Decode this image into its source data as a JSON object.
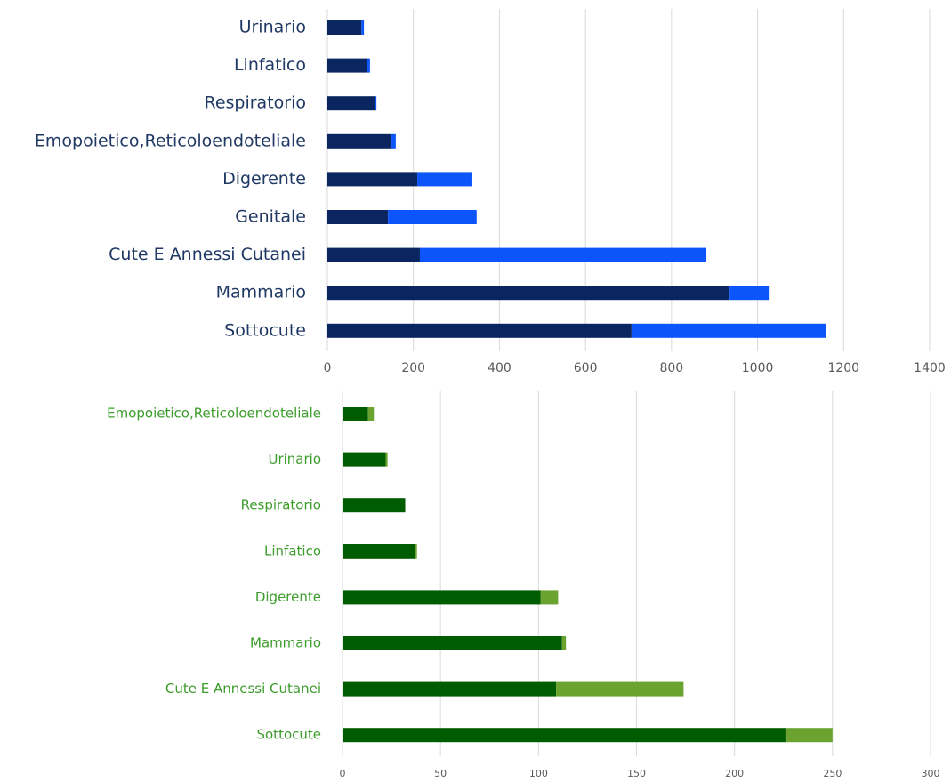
{
  "chart_data": [
    {
      "type": "stacked_barh",
      "categories": [
        "Urinario",
        "Linfatico",
        "Respiratorio",
        "Emopoietico,Reticoloendoteliale",
        "Digerente",
        "Genitale",
        "Cute E Annessi Cutanei",
        "Mammario",
        "Sottocute"
      ],
      "series": [
        {
          "color": "#0b2561",
          "values": [
            79,
            91,
            111,
            149,
            209,
            141,
            215,
            935,
            707
          ]
        },
        {
          "color": "#0b55fb",
          "values": [
            6,
            8,
            3,
            10,
            128,
            206,
            666,
            91,
            451
          ]
        }
      ],
      "label_color": "#1f3864",
      "xlim": [
        0,
        1400
      ],
      "xticks": [
        0,
        200,
        400,
        600,
        800,
        1000,
        1200,
        1400
      ],
      "grid": true
    },
    {
      "type": "stacked_barh",
      "categories": [
        "Emopoietico,Reticoloendoteliale",
        "Urinario",
        "Respiratorio",
        "Linfatico",
        "Digerente",
        "Mammario",
        "Cute E Annessi Cutanei",
        "Sottocute"
      ],
      "series": [
        {
          "color": "#005c00",
          "values": [
            13,
            22,
            32,
            37,
            101,
            112,
            109,
            226
          ]
        },
        {
          "color": "#6aa330",
          "values": [
            3,
            1,
            0,
            1,
            9,
            2,
            65,
            24
          ]
        }
      ],
      "label_color": "#3c9c2c",
      "xlim": [
        0,
        300
      ],
      "xticks": [
        0,
        50,
        100,
        150,
        200,
        250,
        300
      ],
      "grid": true
    }
  ]
}
